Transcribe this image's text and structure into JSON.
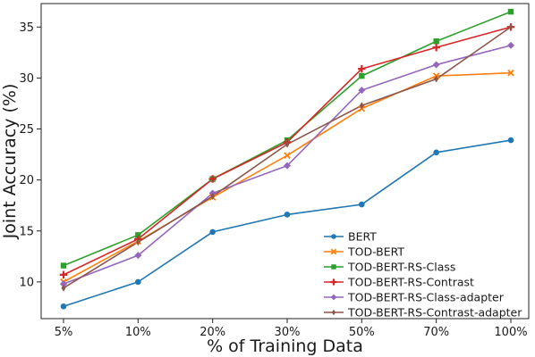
{
  "chart_data": {
    "type": "line",
    "title": "",
    "xlabel": "% of Training Data",
    "ylabel": "Joint Accuracy (%)",
    "categories": [
      "5%",
      "10%",
      "20%",
      "30%",
      "50%",
      "70%",
      "100%"
    ],
    "ylim": [
      6.4,
      37.3
    ],
    "yticks": [
      10,
      15,
      20,
      25,
      30,
      35
    ],
    "grid": false,
    "legend_position": "lower-right",
    "series": [
      {
        "name": "BERT",
        "color": "#1f77b4",
        "marker": "circle",
        "values": [
          7.6,
          10.0,
          14.9,
          16.6,
          17.6,
          22.7,
          23.9
        ]
      },
      {
        "name": "TOD-BERT",
        "color": "#ff7f0e",
        "marker": "x",
        "values": [
          10.0,
          14.0,
          18.3,
          22.4,
          27.0,
          30.2,
          30.5
        ]
      },
      {
        "name": "TOD-BERT-RS-Class",
        "color": "#2ca02c",
        "marker": "square",
        "values": [
          11.6,
          14.6,
          20.1,
          23.9,
          30.2,
          33.6,
          36.5
        ]
      },
      {
        "name": "TOD-BERT-RS-Contrast",
        "color": "#d62728",
        "marker": "plus",
        "values": [
          10.7,
          14.2,
          20.1,
          23.7,
          30.9,
          33.0,
          35.0
        ]
      },
      {
        "name": "TOD-BERT-RS-Class-adapter",
        "color": "#9467bd",
        "marker": "diamond",
        "values": [
          9.8,
          12.6,
          18.7,
          21.4,
          28.8,
          31.3,
          33.2
        ]
      },
      {
        "name": "TOD-BERT-RS-Contrast-adapter",
        "color": "#8c564b",
        "marker": "thin_diamond",
        "values": [
          9.4,
          13.9,
          18.4,
          23.5,
          27.3,
          29.9,
          35.0
        ]
      }
    ]
  }
}
